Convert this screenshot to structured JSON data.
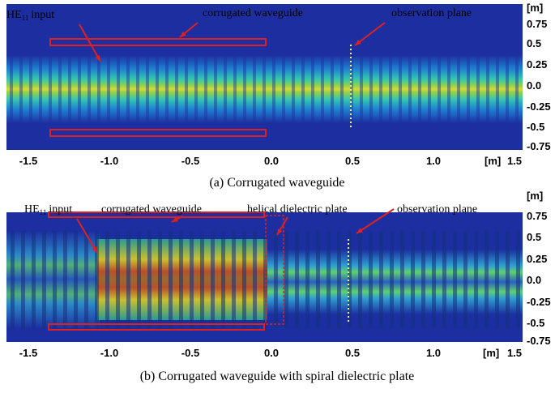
{
  "panels": [
    {
      "caption": "(a) Corrugated waveguide",
      "x_ticks": [
        "-1.5",
        "-1.0",
        "-0.5",
        "0.0",
        "0.5",
        "1.0",
        "1.5"
      ],
      "x_unit": "[m]",
      "y_unit": "[m]",
      "y_ticks": [
        "0.75",
        "0.5",
        "0.25",
        "0.0",
        "-0.25",
        "-0.5",
        "-0.75"
      ],
      "input_label": {
        "main": "HE",
        "sub": "11",
        "rest": "input"
      },
      "annotations": [
        "corrugated waveguide",
        "observation plane"
      ]
    },
    {
      "caption": "(b) Corrugated waveguide with spiral dielectric plate",
      "x_ticks": [
        "-1.5",
        "-1.0",
        "-0.5",
        "0.0",
        "0.5",
        "1.0",
        "1.5"
      ],
      "x_unit": "[m]",
      "y_unit": "[m]",
      "y_ticks": [
        "0.75",
        "0.5",
        "0.25",
        "0.0",
        "-0.25",
        "-0.5",
        "-0.75"
      ],
      "input_label": {
        "main": "HE",
        "sub": "11",
        "rest": "input"
      },
      "annotations": [
        "corrugated waveguide",
        "helical dielectric plate",
        "observation plane"
      ]
    }
  ]
}
